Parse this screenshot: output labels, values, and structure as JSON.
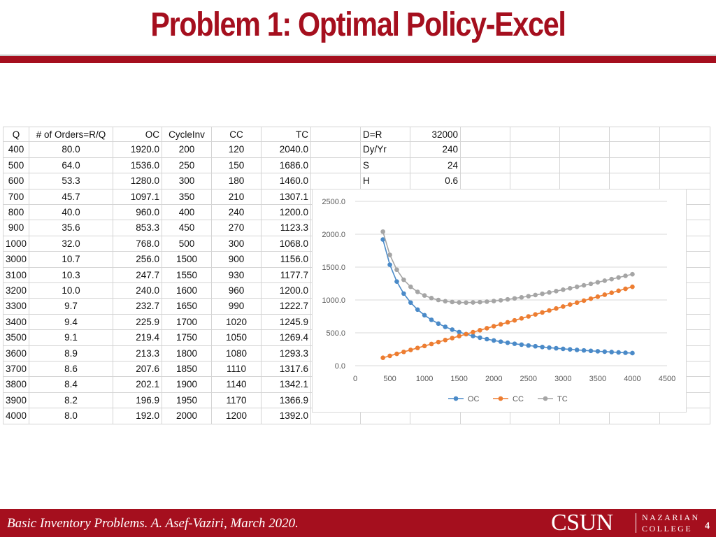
{
  "slide": {
    "title": "Problem 1: Optimal Policy-Excel",
    "footer_text": "Basic Inventory Problems. A. Asef-Vaziri, March 2020.",
    "logo_main": "CSUN",
    "logo_line1": "NAZARIAN",
    "logo_line2": "COLLEGE",
    "page_number": "4",
    "accent_color": "#a50f1e"
  },
  "table": {
    "headers": [
      "Q",
      "# of Orders=R/Q",
      "OC",
      "CycleInv",
      "CC",
      "TC"
    ],
    "rows": [
      [
        "400",
        "80.0",
        "1920.0",
        "200",
        "120",
        "2040.0"
      ],
      [
        "500",
        "64.0",
        "1536.0",
        "250",
        "150",
        "1686.0"
      ],
      [
        "600",
        "53.3",
        "1280.0",
        "300",
        "180",
        "1460.0"
      ],
      [
        "700",
        "45.7",
        "1097.1",
        "350",
        "210",
        "1307.1"
      ],
      [
        "800",
        "40.0",
        "960.0",
        "400",
        "240",
        "1200.0"
      ],
      [
        "900",
        "35.6",
        "853.3",
        "450",
        "270",
        "1123.3"
      ],
      [
        "1000",
        "32.0",
        "768.0",
        "500",
        "300",
        "1068.0"
      ],
      [
        "3000",
        "10.7",
        "256.0",
        "1500",
        "900",
        "1156.0"
      ],
      [
        "3100",
        "10.3",
        "247.7",
        "1550",
        "930",
        "1177.7"
      ],
      [
        "3200",
        "10.0",
        "240.0",
        "1600",
        "960",
        "1200.0"
      ],
      [
        "3300",
        "9.7",
        "232.7",
        "1650",
        "990",
        "1222.7"
      ],
      [
        "3400",
        "9.4",
        "225.9",
        "1700",
        "1020",
        "1245.9"
      ],
      [
        "3500",
        "9.1",
        "219.4",
        "1750",
        "1050",
        "1269.4"
      ],
      [
        "3600",
        "8.9",
        "213.3",
        "1800",
        "1080",
        "1293.3"
      ],
      [
        "3700",
        "8.6",
        "207.6",
        "1850",
        "1110",
        "1317.6"
      ],
      [
        "3800",
        "8.4",
        "202.1",
        "1900",
        "1140",
        "1342.1"
      ],
      [
        "3900",
        "8.2",
        "196.9",
        "1950",
        "1170",
        "1366.9"
      ],
      [
        "4000",
        "8.0",
        "192.0",
        "2000",
        "1200",
        "1392.0"
      ]
    ]
  },
  "params": [
    {
      "label": "D=R",
      "value": "32000"
    },
    {
      "label": "Dy/Yr",
      "value": "240"
    },
    {
      "label": "S",
      "value": "24"
    },
    {
      "label": "H",
      "value": "0.6"
    }
  ],
  "chart_data": {
    "type": "line",
    "title": "",
    "xlabel": "",
    "ylabel": "",
    "xlim": [
      0,
      4500
    ],
    "ylim": [
      0,
      2500
    ],
    "x_ticks": [
      "0",
      "500",
      "1000",
      "1500",
      "2000",
      "2500",
      "3000",
      "3500",
      "4000",
      "4500"
    ],
    "y_ticks": [
      "0.0",
      "500.0",
      "1000.0",
      "1500.0",
      "2000.0",
      "2500.0"
    ],
    "grid": true,
    "legend_position": "bottom",
    "x": [
      400,
      500,
      600,
      700,
      800,
      900,
      1000,
      1100,
      1200,
      1300,
      1400,
      1500,
      1600,
      1700,
      1800,
      1900,
      2000,
      2100,
      2200,
      2300,
      2400,
      2500,
      2600,
      2700,
      2800,
      2900,
      3000,
      3100,
      3200,
      3300,
      3400,
      3500,
      3600,
      3700,
      3800,
      3900,
      4000
    ],
    "series": [
      {
        "name": "OC",
        "color": "#4a8ac8",
        "values": [
          1920.0,
          1536.0,
          1280.0,
          1097.1,
          960.0,
          853.3,
          768.0,
          698.2,
          640.0,
          590.8,
          548.6,
          512.0,
          480.0,
          451.8,
          426.7,
          404.2,
          384.0,
          365.7,
          349.1,
          333.9,
          320.0,
          307.2,
          295.4,
          284.4,
          274.3,
          264.8,
          256.0,
          247.7,
          240.0,
          232.7,
          225.9,
          219.4,
          213.3,
          207.6,
          202.1,
          196.9,
          192.0
        ]
      },
      {
        "name": "CC",
        "color": "#ed7d31",
        "values": [
          120,
          150,
          180,
          210,
          240,
          270,
          300,
          330,
          360,
          390,
          420,
          450,
          480,
          510,
          540,
          570,
          600,
          630,
          660,
          690,
          720,
          750,
          780,
          810,
          840,
          870,
          900,
          930,
          960,
          990,
          1020,
          1050,
          1080,
          1110,
          1140,
          1170,
          1200
        ]
      },
      {
        "name": "TC",
        "color": "#a5a5a5",
        "values": [
          2040.0,
          1686.0,
          1460.0,
          1307.1,
          1200.0,
          1123.3,
          1068.0,
          1028.2,
          1000.0,
          980.8,
          968.6,
          962.0,
          960.0,
          961.8,
          966.7,
          974.2,
          984.0,
          995.7,
          1009.1,
          1023.9,
          1040.0,
          1057.2,
          1075.4,
          1094.4,
          1114.3,
          1134.8,
          1156.0,
          1177.7,
          1200.0,
          1222.7,
          1245.9,
          1269.4,
          1293.3,
          1317.6,
          1342.1,
          1366.9,
          1392.0
        ]
      }
    ]
  }
}
